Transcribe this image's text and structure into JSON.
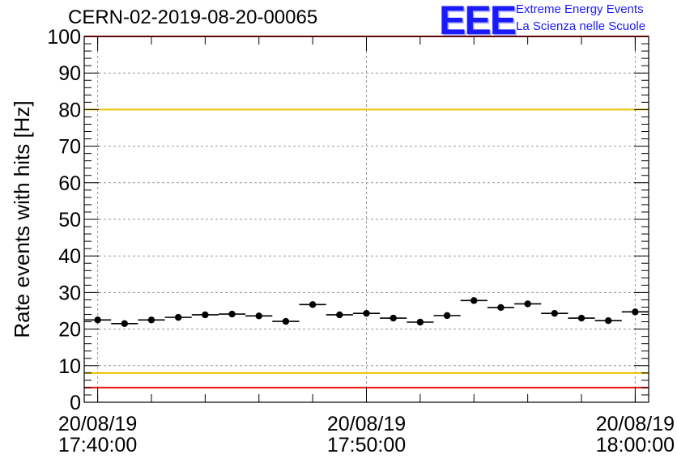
{
  "header": {
    "title": "CERN-02-2019-08-20-00065",
    "logo_mark": "EEE",
    "logo_line1": "Extreme Energy Events",
    "logo_line2": "La Scienza nelle Scuole"
  },
  "chart_data": {
    "type": "scatter",
    "title": "CERN-02-2019-08-20-00065",
    "ylabel": "Rate events with hits [Hz]",
    "xlabel": "",
    "ylim": [
      0,
      100
    ],
    "xlim": [
      "17:39:30",
      "18:00:30"
    ],
    "yticks": [
      0,
      10,
      20,
      30,
      40,
      50,
      60,
      70,
      80,
      90,
      100
    ],
    "xticks": [
      {
        "t": "17:40:00",
        "date": "20/08/19",
        "time": "17:40:00"
      },
      {
        "t": "17:50:00",
        "date": "20/08/19",
        "time": "17:50:00"
      },
      {
        "t": "18:00:00",
        "date": "20/08/19",
        "time": "18:00:00"
      }
    ],
    "grid": true,
    "bin_width_minutes": 1,
    "series": [
      {
        "x": [
          "17:40:00",
          "17:41:00",
          "17:42:00",
          "17:43:00",
          "17:44:00",
          "17:45:00",
          "17:46:00",
          "17:47:00",
          "17:48:00",
          "17:49:00",
          "17:50:00",
          "17:51:00",
          "17:52:00",
          "17:53:00",
          "17:54:00",
          "17:55:00",
          "17:56:00",
          "17:57:00",
          "17:58:00",
          "17:59:00",
          "18:00:00"
        ],
        "y": [
          22.5,
          21.5,
          22.5,
          23.2,
          23.9,
          24.1,
          23.6,
          22.1,
          26.7,
          23.9,
          24.3,
          23.0,
          21.9,
          23.7,
          27.8,
          25.9,
          26.9,
          24.3,
          23.0,
          22.3,
          24.7
        ]
      }
    ],
    "reference_lines": [
      {
        "y": 100,
        "color": "#ee1111"
      },
      {
        "y": 80,
        "color": "#ecc400"
      },
      {
        "y": 8,
        "color": "#ecc400"
      },
      {
        "y": 4,
        "color": "#ee1111"
      }
    ]
  }
}
